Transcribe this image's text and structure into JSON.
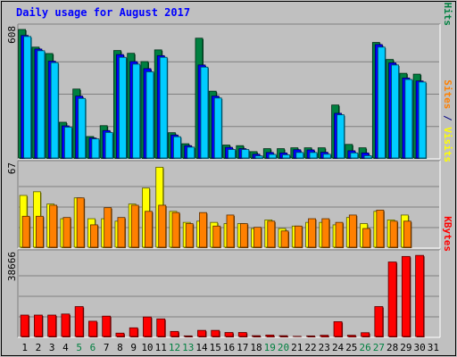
{
  "chart_data": {
    "type": "bar",
    "title": "Daily usage for August 2017",
    "categories": [
      "1",
      "2",
      "3",
      "4",
      "5",
      "6",
      "7",
      "8",
      "9",
      "10",
      "11",
      "12",
      "13",
      "14",
      "15",
      "16",
      "17",
      "18",
      "19",
      "20",
      "21",
      "22",
      "23",
      "24",
      "25",
      "26",
      "27",
      "28",
      "29",
      "30",
      "31"
    ],
    "weekend_days": [
      "5",
      "6",
      "12",
      "13",
      "19",
      "20",
      "26",
      "27"
    ],
    "grid": true,
    "panels": [
      {
        "id": "hits-files-pages",
        "ymax_label": "608",
        "ymax": 608,
        "axis_label_parts": [
          {
            "text": "Pages",
            "color": "#00ccff"
          },
          {
            "text": " / ",
            "color": "#000080"
          },
          {
            "text": "Files",
            "color": "#0000ff"
          },
          {
            "text": " / ",
            "color": "#000080"
          },
          {
            "text": "Hits",
            "color": "#008040"
          }
        ],
        "series": [
          {
            "name": "Hits",
            "color": "#008040",
            "values": [
              608,
              525,
              495,
              172,
              328,
              105,
              156,
              509,
              496,
              457,
              512,
              123,
              71,
              567,
              318,
              65,
              62,
              34,
              48,
              48,
              52,
              52,
              52,
              253,
              68,
              52,
              547,
              467,
              402,
              398,
              0
            ]
          },
          {
            "name": "Files",
            "color": "#0000ff",
            "values": [
              580,
              516,
              459,
              155,
              295,
              98,
              133,
              490,
              457,
              424,
              485,
              112,
              62,
              441,
              295,
              54,
              48,
              22,
              30,
              28,
              43,
              42,
              31,
              214,
              38,
              28,
              537,
              451,
              380,
              366,
              0
            ]
          },
          {
            "name": "Pages",
            "color": "#00ccff",
            "values": [
              575,
              508,
              452,
              149,
              284,
              94,
              124,
              477,
              445,
              409,
              477,
              104,
              55,
              431,
              286,
              44,
              44,
              14,
              21,
              19,
              30,
              30,
              22,
              207,
              28,
              15,
              525,
              441,
              373,
              361,
              0
            ]
          }
        ]
      },
      {
        "id": "visits-sites",
        "ymax_label": "67",
        "ymax": 67,
        "axis_label_parts": [
          {
            "text": "Sites",
            "color": "#ff8000"
          },
          {
            "text": " / ",
            "color": "#000080"
          },
          {
            "text": "Visits",
            "color": "#ffff00"
          }
        ],
        "series": [
          {
            "name": "Visits",
            "color": "#ffff00",
            "values": [
              43,
              46,
              36,
              24,
              41,
              24,
              24,
              22,
              36,
              49,
              66,
              30,
              21,
              22,
              21,
              20,
              20,
              16,
              23,
              16,
              18,
              21,
              21,
              19,
              25,
              20,
              30,
              23,
              27,
              0,
              0
            ]
          },
          {
            "name": "Sites",
            "color": "#ff8000",
            "values": [
              26,
              26,
              35,
              25,
              41,
              19,
              33,
              25,
              35,
              30,
              35,
              29,
              20,
              29,
              18,
              27,
              20,
              17,
              22,
              14,
              18,
              24,
              24,
              21,
              27,
              16,
              31,
              22,
              22,
              0,
              0
            ]
          }
        ]
      },
      {
        "id": "kbytes",
        "ymax_label": "38666",
        "ymax": 38666,
        "axis_label_parts": [
          {
            "text": "KBytes",
            "color": "#ff0000"
          }
        ],
        "series": [
          {
            "name": "KBytes",
            "color": "#ff0000",
            "values": [
              10500,
              10500,
              10500,
              11000,
              14500,
              7600,
              10000,
              2000,
              4500,
              9600,
              8700,
              2800,
              700,
              3300,
              3300,
              2300,
              2300,
              800,
              1100,
              800,
              500,
              700,
              1000,
              7400,
              1000,
              2200,
              14500,
              35500,
              38100,
              38600,
              0
            ]
          }
        ]
      }
    ]
  }
}
